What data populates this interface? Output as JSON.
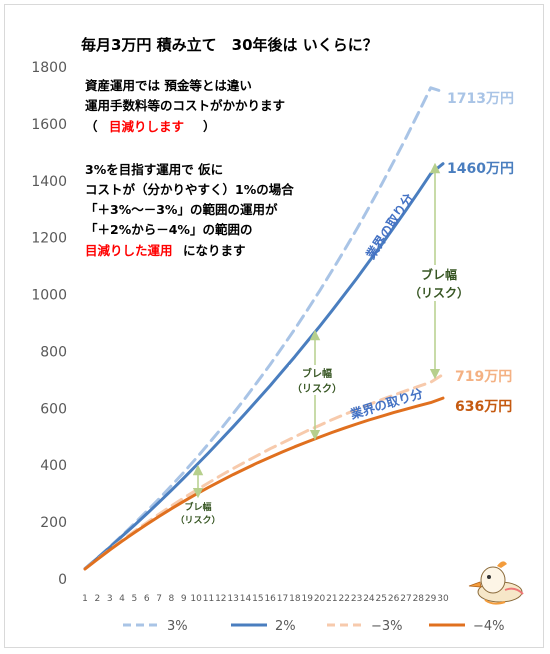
{
  "chart_data": {
    "type": "line",
    "title": "毎月3万円 積み立て　30年後は いくらに？",
    "xlabel": "",
    "ylabel": "",
    "x": [
      1,
      2,
      3,
      4,
      5,
      6,
      7,
      8,
      9,
      10,
      11,
      12,
      13,
      14,
      15,
      16,
      17,
      18,
      19,
      20,
      21,
      22,
      23,
      24,
      25,
      26,
      27,
      28,
      29,
      30
    ],
    "ylim": [
      0,
      1800
    ],
    "yticks": [
      0,
      200,
      400,
      600,
      800,
      1000,
      1200,
      1400,
      1600,
      1800
    ],
    "grid": false,
    "legend_position": "bottom",
    "series": [
      {
        "name": "3%",
        "color": "#a9c4e6",
        "style": "dashed",
        "values": [
          37,
          74,
          113,
          153,
          195,
          238,
          282,
          328,
          375,
          424,
          475,
          527,
          581,
          637,
          695,
          754,
          816,
          879,
          945,
          1013,
          1083,
          1155,
          1229,
          1306,
          1385,
          1467,
          1551,
          1638,
          1727,
          1713
        ]
      },
      {
        "name": "2%",
        "color": "#4a7ebf",
        "style": "solid",
        "values": [
          36,
          73,
          111,
          150,
          189,
          229,
          270,
          312,
          355,
          399,
          443,
          489,
          535,
          583,
          631,
          680,
          731,
          782,
          835,
          888,
          943,
          999,
          1056,
          1115,
          1174,
          1235,
          1297,
          1360,
          1425,
          1460
        ]
      },
      {
        "name": "−3%",
        "color": "#f7caac",
        "style": "dashed",
        "values": [
          35,
          70,
          103,
          136,
          168,
          198,
          228,
          257,
          285,
          312,
          338,
          364,
          388,
          412,
          435,
          458,
          479,
          500,
          521,
          540,
          560,
          578,
          596,
          613,
          630,
          646,
          662,
          677,
          692,
          719
        ]
      },
      {
        "name": "−4%",
        "color": "#e0701f",
        "style": "solid",
        "values": [
          35,
          69,
          102,
          133,
          163,
          192,
          220,
          247,
          273,
          298,
          322,
          345,
          367,
          388,
          409,
          428,
          447,
          465,
          482,
          499,
          515,
          530,
          545,
          559,
          572,
          585,
          597,
          609,
          620,
          636
        ]
      }
    ],
    "end_labels": [
      "1713万円",
      "1460万円",
      "719万円",
      "636万円"
    ]
  },
  "notes": {
    "block1": [
      "資産運用では 預金等とは違い",
      "運用手数料等のコストがかかります"
    ],
    "paren_open": "（",
    "paren_red": "目減りします",
    "paren_close": "）",
    "block2": [
      "3%を目指す運用で 仮に",
      "コストが（分かりやすく）1%の場合",
      "「＋3%〜－3%」の範囲の運用が",
      "「＋2%から－4%」の範囲の"
    ],
    "block2_red": "目減りした運用",
    "block2_tail": "になります"
  },
  "annotations": {
    "risk_large": [
      "ブレ幅",
      "（リスク）"
    ],
    "risk_mid": [
      "ブレ幅",
      "（リスク）"
    ],
    "risk_small": [
      "ブレ幅",
      "（リスク）"
    ],
    "industry_share": "業界の取り分"
  },
  "colors": {
    "risk_arrow": "#c5d9a0",
    "risk_text": "#375623",
    "share_text": "#4472c4"
  },
  "mascot_icon": "bird-mascot-icon"
}
